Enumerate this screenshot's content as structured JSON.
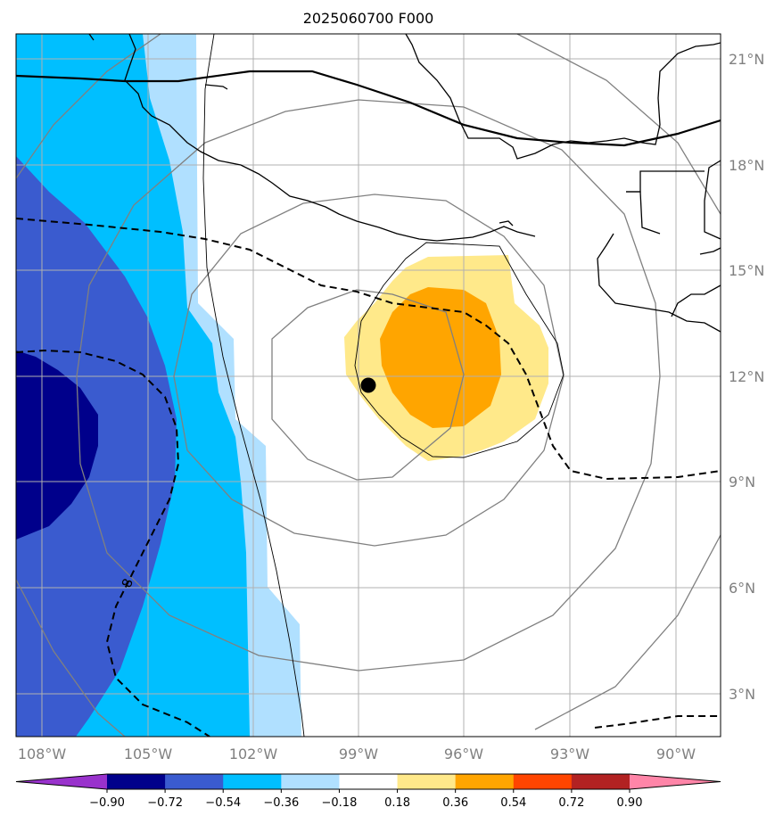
{
  "title": "2025060700 F000",
  "lon_labels": [
    "108°W",
    "105°W",
    "102°W",
    "99°W",
    "96°W",
    "93°W",
    "90°W"
  ],
  "lat_labels": [
    "21°N",
    "18°N",
    "15°N",
    "12°N",
    "9°N",
    "6°N",
    "3°N"
  ],
  "contour_label": "8",
  "colorbar": {
    "ticks": [
      "−0.90",
      "−0.72",
      "−0.54",
      "−0.36",
      "−0.18",
      "0.18",
      "0.36",
      "0.54",
      "0.72",
      "0.90"
    ],
    "colors": [
      "#9932cc",
      "#00008b",
      "#3a5bcf",
      "#00bfff",
      "#b0e0ff",
      "#ffffff",
      "#ffe98a",
      "#ffa500",
      "#ff4500",
      "#b22222",
      "#ff85a8"
    ]
  },
  "storm_center": {
    "lon": "98.7°W",
    "lat": "11.8°N"
  }
}
